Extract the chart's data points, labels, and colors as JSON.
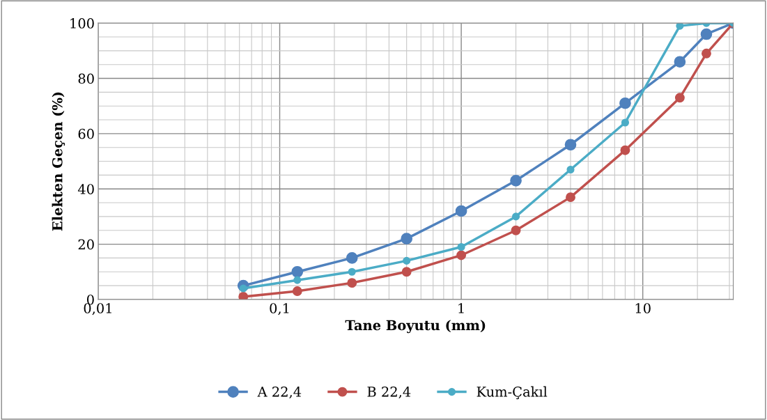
{
  "chart_data": {
    "type": "line",
    "xlabel": "Tane Boyutu (mm)",
    "ylabel": "Elekten Geçen (%)",
    "log": "x",
    "xlim": [
      0.01,
      31.5
    ],
    "xticks": [
      {
        "value": 0.01,
        "label": "0,01"
      },
      {
        "value": 0.1,
        "label": "0,1"
      },
      1,
      10
    ],
    "ylim": [
      0,
      100
    ],
    "yticks": [
      0,
      20,
      40,
      60,
      80,
      100
    ],
    "grid": true,
    "legend": "bottom",
    "marker": "circle",
    "line_style": "solid",
    "x": [
      0.063,
      0.125,
      0.25,
      0.5,
      1,
      2,
      4,
      8,
      16,
      22.4,
      31.5
    ],
    "series": [
      {
        "name": "A 22,4",
        "color": "#4f81bd",
        "values": [
          5,
          10,
          15,
          22,
          32,
          43,
          56,
          71,
          86,
          96,
          100
        ]
      },
      {
        "name": "B 22,4",
        "color": "#c0504d",
        "values": [
          1,
          3,
          6,
          10,
          16,
          25,
          37,
          54,
          73,
          89,
          100
        ]
      },
      {
        "name": "Kum-Çakıl",
        "color": "#4bacc6",
        "values": [
          4,
          7,
          10,
          14,
          19,
          30,
          47,
          64,
          99,
          100,
          100
        ]
      }
    ]
  }
}
